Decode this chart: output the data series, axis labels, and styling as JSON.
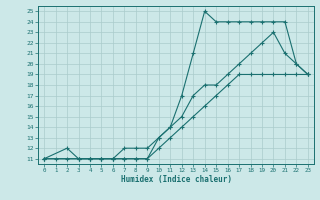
{
  "bg_color": "#cce8e8",
  "grid_color": "#aacccc",
  "line_color": "#1a7070",
  "xlabel": "Humidex (Indice chaleur)",
  "xlim": [
    -0.5,
    23.5
  ],
  "ylim": [
    10.5,
    25.5
  ],
  "xticks": [
    0,
    1,
    2,
    3,
    4,
    5,
    6,
    7,
    8,
    9,
    10,
    11,
    12,
    13,
    14,
    15,
    16,
    17,
    18,
    19,
    20,
    21,
    22,
    23
  ],
  "yticks": [
    11,
    12,
    13,
    14,
    15,
    16,
    17,
    18,
    19,
    20,
    21,
    22,
    23,
    24,
    25
  ],
  "series": [
    {
      "x": [
        0,
        2,
        3,
        4,
        5,
        6,
        7,
        8,
        9,
        10,
        11,
        12,
        13,
        14,
        15,
        16,
        17,
        18,
        19,
        20,
        21,
        22,
        23
      ],
      "y": [
        11,
        12,
        11,
        11,
        11,
        11,
        11,
        11,
        11,
        13,
        14,
        17,
        21,
        25,
        24,
        24,
        24,
        24,
        24,
        24,
        24,
        20,
        19
      ]
    },
    {
      "x": [
        0,
        3,
        4,
        5,
        6,
        7,
        8,
        9,
        10,
        11,
        12,
        13,
        14,
        15,
        16,
        17,
        18,
        19,
        20,
        21,
        22,
        23
      ],
      "y": [
        11,
        11,
        11,
        11,
        11,
        12,
        12,
        12,
        13,
        14,
        15,
        17,
        18,
        18,
        19,
        20,
        21,
        22,
        23,
        21,
        20,
        19
      ]
    },
    {
      "x": [
        0,
        1,
        2,
        3,
        4,
        5,
        6,
        7,
        8,
        9,
        10,
        11,
        12,
        13,
        14,
        15,
        16,
        17,
        18,
        19,
        20,
        21,
        22,
        23
      ],
      "y": [
        11,
        11,
        11,
        11,
        11,
        11,
        11,
        11,
        11,
        11,
        12,
        13,
        14,
        15,
        16,
        17,
        18,
        19,
        19,
        19,
        19,
        19,
        19,
        19
      ]
    }
  ]
}
